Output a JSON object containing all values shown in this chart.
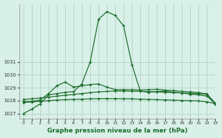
{
  "title": "Graphe pression niveau de la mer (hPa)",
  "bg_color": "#d8f0e8",
  "line_color": "#1a6b2a",
  "grid_color": "#a8ccbb",
  "xlim": [
    -0.5,
    23
  ],
  "ylim": [
    1026.6,
    1035.5
  ],
  "yticks": [
    1027,
    1028,
    1029,
    1030,
    1031
  ],
  "xticks": [
    0,
    1,
    2,
    3,
    4,
    5,
    6,
    7,
    8,
    9,
    10,
    11,
    12,
    13,
    14,
    15,
    16,
    17,
    18,
    19,
    20,
    21,
    22,
    23
  ],
  "line1": [
    1027.0,
    1027.35,
    1027.75,
    1028.45,
    1028.55,
    1028.65,
    1028.7,
    1029.3,
    1031.0,
    1034.3,
    1034.9,
    1034.6,
    1033.8,
    1030.8,
    1028.75,
    1028.65,
    1028.7,
    1028.75,
    1028.65,
    1028.6,
    1028.5,
    1028.45,
    1028.35,
    1027.75
  ],
  "line2": [
    1027.95,
    1027.95,
    1028.05,
    1028.55,
    1029.15,
    1029.45,
    1029.05,
    1029.15,
    1029.25,
    1029.3,
    1029.05,
    1028.85,
    1028.85,
    1028.85,
    1028.82,
    1028.85,
    1028.88,
    1028.82,
    1028.78,
    1028.72,
    1028.68,
    1028.62,
    1028.52,
    1027.78
  ],
  "line3": [
    1028.1,
    1028.15,
    1028.2,
    1028.28,
    1028.35,
    1028.42,
    1028.48,
    1028.55,
    1028.62,
    1028.68,
    1028.72,
    1028.75,
    1028.75,
    1028.73,
    1028.72,
    1028.7,
    1028.68,
    1028.65,
    1028.62,
    1028.6,
    1028.57,
    1028.54,
    1028.5,
    1027.78
  ],
  "line4": [
    1027.85,
    1027.9,
    1027.95,
    1028.0,
    1028.05,
    1028.08,
    1028.1,
    1028.12,
    1028.14,
    1028.16,
    1028.16,
    1028.16,
    1028.15,
    1028.14,
    1028.12,
    1028.1,
    1028.08,
    1028.06,
    1028.04,
    1028.02,
    1028.0,
    1027.98,
    1027.9,
    1027.78
  ]
}
